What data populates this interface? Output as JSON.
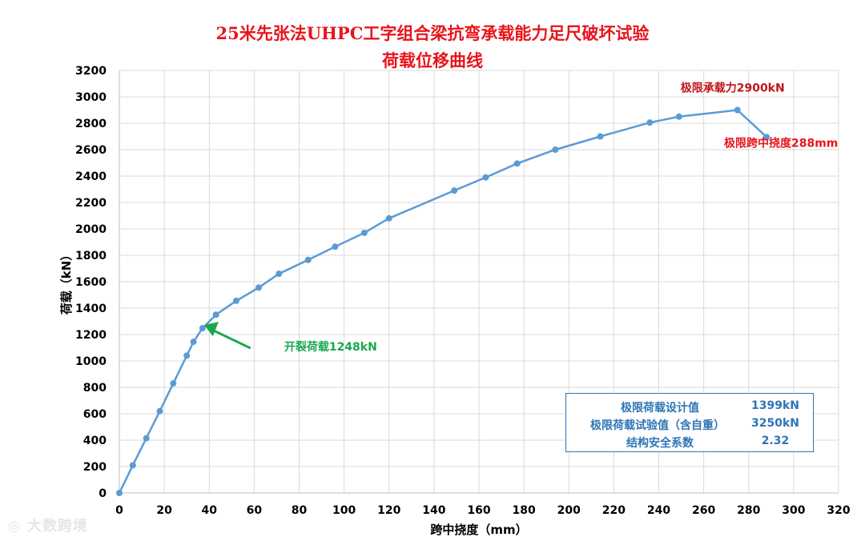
{
  "chart_data": {
    "type": "line",
    "title": "25米先张法UHPC工字组合梁抗弯承载能力足尺破坏试验",
    "subtitle": "荷载位移曲线",
    "xlabel": "跨中挠度（mm）",
    "ylabel": "荷载（kN）",
    "xlim": [
      0,
      320
    ],
    "ylim": [
      0,
      3200
    ],
    "xticks": [
      0,
      20,
      40,
      60,
      80,
      100,
      120,
      140,
      160,
      180,
      200,
      220,
      240,
      260,
      280,
      300,
      320
    ],
    "yticks": [
      0,
      200,
      400,
      600,
      800,
      1000,
      1200,
      1400,
      1600,
      1800,
      2000,
      2200,
      2400,
      2600,
      2800,
      3000,
      3200
    ],
    "grid": true,
    "series_color": "#5b9bd5",
    "series": [
      {
        "x": [
          0,
          6,
          12,
          18,
          24,
          30,
          33,
          37,
          43,
          52,
          62,
          71,
          84,
          96,
          109,
          120,
          149,
          163,
          177,
          194,
          214,
          236,
          249,
          275,
          288
        ],
        "y": [
          0,
          210,
          415,
          620,
          830,
          1040,
          1145,
          1248,
          1350,
          1455,
          1555,
          1660,
          1765,
          1865,
          1970,
          2080,
          2290,
          2390,
          2495,
          2600,
          2700,
          2805,
          2850,
          2900,
          2695
        ]
      }
    ],
    "annotations": [
      {
        "text": "开裂荷载1248kN",
        "color": "#1aa84f",
        "arrow": true
      },
      {
        "text": "极限承载力2900kN",
        "color": "#c0141b"
      },
      {
        "text": "极限跨中挠度288mm",
        "color": "#e8141b"
      }
    ]
  },
  "info_box": {
    "rows": [
      {
        "label": "极限荷载设计值",
        "value": "1399kN"
      },
      {
        "label": "极限荷载试验值（含自重）",
        "value": "3250kN"
      },
      {
        "label": "结构安全系数",
        "value": "2.32"
      }
    ]
  },
  "watermark": "大数跨境"
}
